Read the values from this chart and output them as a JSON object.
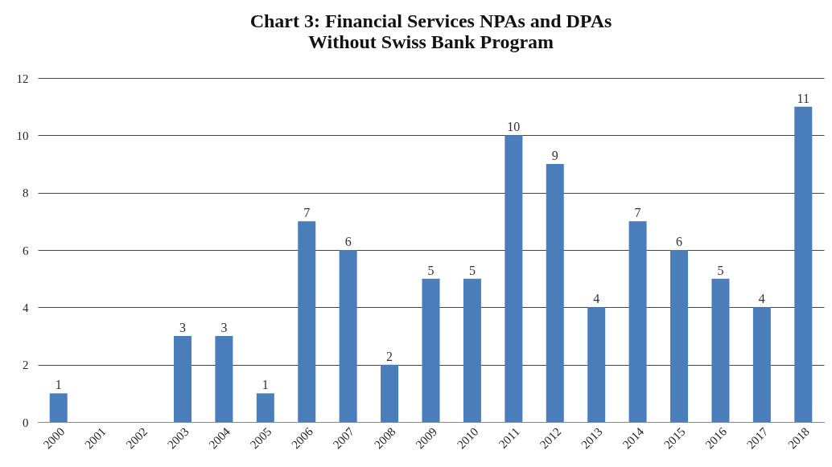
{
  "chart_data": {
    "type": "bar",
    "title": [
      "Chart 3:  Financial Services NPAs and DPAs",
      "Without Swiss Bank Program"
    ],
    "categories": [
      "2000",
      "2001",
      "2002",
      "2003",
      "2004",
      "2005",
      "2006",
      "2007",
      "2008",
      "2009",
      "2010",
      "2011",
      "2012",
      "2013",
      "2014",
      "2015",
      "2016",
      "2017",
      "2018"
    ],
    "values": [
      1,
      0,
      0,
      3,
      3,
      1,
      7,
      6,
      2,
      5,
      5,
      10,
      9,
      4,
      7,
      6,
      5,
      4,
      11
    ],
    "value_labels": [
      "1",
      null,
      null,
      "3",
      "3",
      "1",
      "7",
      "6",
      "2",
      "5",
      "5",
      "10",
      "9",
      "4",
      "7",
      "6",
      "5",
      "4",
      "11"
    ],
    "color": "#4a7ebb",
    "ylim": [
      0,
      12
    ],
    "yticks": [
      0,
      2,
      4,
      6,
      8,
      10,
      12
    ],
    "grid": "y"
  }
}
